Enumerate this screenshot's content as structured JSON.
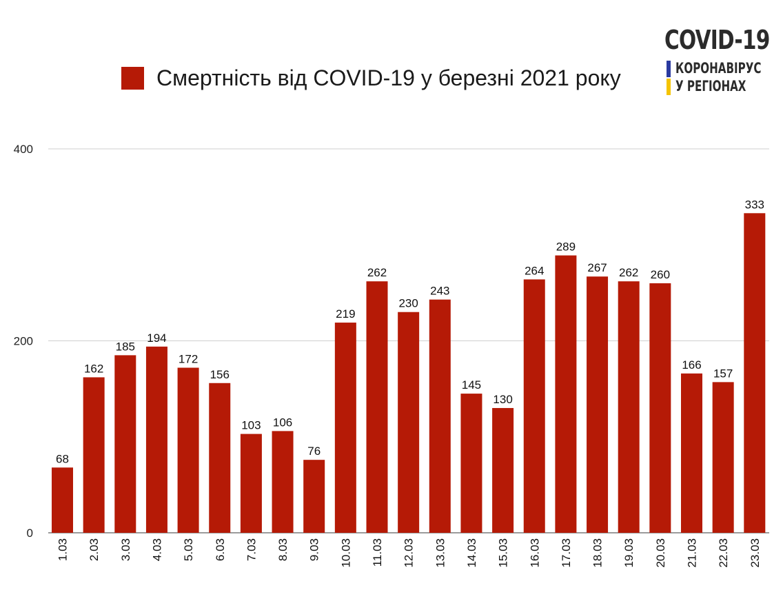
{
  "logo": {
    "title": "COVID-19",
    "line1": "КОРОНАВІРУС",
    "line2": "У РЕГІОНАХ",
    "bar_colors": [
      "#2a3aa0",
      "#f5c400"
    ]
  },
  "legend": {
    "label": "Смертність від COVID-19 у березні 2021 року",
    "color": "#b51a06"
  },
  "chart_data": {
    "type": "bar",
    "title": "",
    "xlabel": "",
    "ylabel": "",
    "ylim": [
      0,
      400
    ],
    "yticks": [
      0,
      200,
      400
    ],
    "grid": true,
    "legend_position": "top",
    "bar_color": "#b51a06",
    "categories": [
      "1.03",
      "2.03",
      "3.03",
      "4.03",
      "5.03",
      "6.03",
      "7.03",
      "8.03",
      "9.03",
      "10.03",
      "11.03",
      "12.03",
      "13.03",
      "14.03",
      "15.03",
      "16.03",
      "17.03",
      "18.03",
      "19.03",
      "20.03",
      "21.03",
      "22.03",
      "23.03"
    ],
    "series": [
      {
        "name": "Смертність від COVID-19 у березні 2021 року",
        "values": [
          68,
          162,
          185,
          194,
          172,
          156,
          103,
          106,
          76,
          219,
          262,
          230,
          243,
          145,
          130,
          264,
          289,
          267,
          262,
          260,
          166,
          157,
          333
        ]
      }
    ]
  }
}
